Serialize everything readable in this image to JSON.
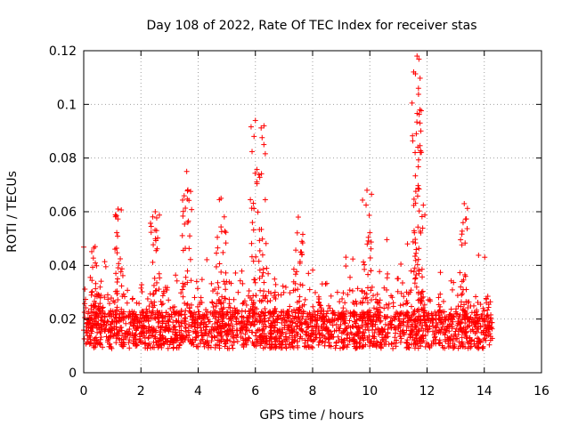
{
  "chart_data": {
    "type": "scatter",
    "title": "Day 108 of 2022, Rate Of TEC Index for receiver stas",
    "xlabel": "GPS time / hours",
    "ylabel": "ROTI / TECUs",
    "xlim": [
      0,
      16
    ],
    "ylim": [
      0,
      0.12
    ],
    "xticks": [
      "0",
      "2",
      "4",
      "6",
      "8",
      "10",
      "12",
      "14",
      "16"
    ],
    "yticks": [
      "0",
      "0.02",
      "0.04",
      "0.06",
      "0.08",
      "0.1",
      "0.12"
    ],
    "grid": true,
    "marker": "plus",
    "color": "#ff0000",
    "description": "Dense scatter of ROTI samples from 0 to ~14.3 h; baseline 0.005-0.03 TECU with spikes",
    "peaks": [
      {
        "x": 0.4,
        "y": 0.047
      },
      {
        "x": 1.2,
        "y": 0.061
      },
      {
        "x": 2.5,
        "y": 0.06
      },
      {
        "x": 3.6,
        "y": 0.075
      },
      {
        "x": 4.8,
        "y": 0.065
      },
      {
        "x": 6.0,
        "y": 0.094
      },
      {
        "x": 6.3,
        "y": 0.092
      },
      {
        "x": 7.5,
        "y": 0.058
      },
      {
        "x": 9.9,
        "y": 0.068
      },
      {
        "x": 11.65,
        "y": 0.118
      },
      {
        "x": 11.7,
        "y": 0.106
      },
      {
        "x": 11.75,
        "y": 0.098
      },
      {
        "x": 13.3,
        "y": 0.063
      }
    ]
  }
}
